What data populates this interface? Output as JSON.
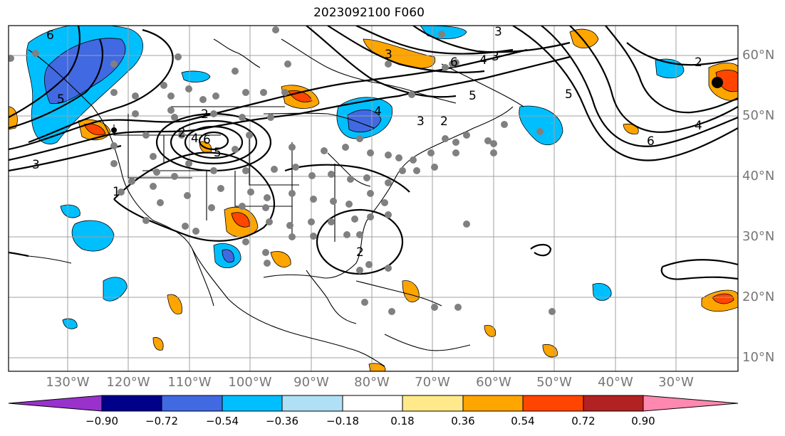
{
  "title": "2023092100 F060",
  "lat_labels": [
    "60°N",
    "50°N",
    "40°N",
    "30°N",
    "20°N",
    "10°N"
  ],
  "lon_labels": [
    "130°W",
    "120°W",
    "110°W",
    "100°W",
    "90°W",
    "80°W",
    "70°W",
    "60°W",
    "50°W",
    "40°W",
    "30°W"
  ],
  "contour_labels": [
    "6",
    "5",
    "2",
    "2",
    "4",
    "3",
    "6",
    "5",
    "3",
    "2",
    "3",
    "4",
    "6",
    "5",
    "2",
    "3",
    "4",
    "5",
    "4",
    "6",
    "3",
    "2",
    "1"
  ],
  "colorbar": {
    "ticks": [
      "−0.90",
      "−0.72",
      "−0.54",
      "−0.36",
      "−0.18",
      "0.18",
      "0.36",
      "0.54",
      "0.72",
      "0.90"
    ],
    "colors": [
      "#9932cc",
      "#00008b",
      "#4169e1",
      "#00bfff",
      "#b0e0f5",
      "#ffffff",
      "#ffe98a",
      "#ffa500",
      "#ff4500",
      "#b22222",
      "#ff88b0"
    ]
  },
  "colors": {
    "grid": "#a0a0a0",
    "contour": "#000000",
    "station_dot": "#808080",
    "blue_dark": "#4169e1",
    "blue_mid": "#00bfff",
    "orange": "#ffa500",
    "red": "#ff4500",
    "purple": "#9932cc"
  }
}
